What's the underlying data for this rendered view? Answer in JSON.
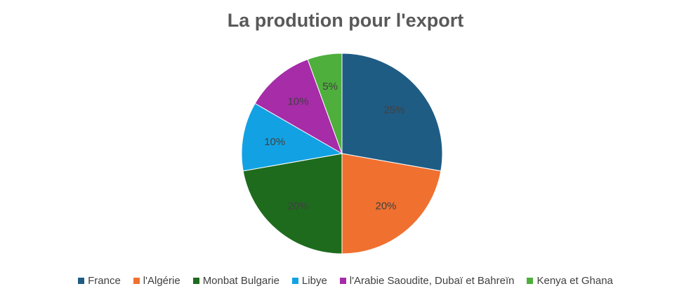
{
  "chart_data": {
    "type": "pie",
    "title": "La prodution pour l'export",
    "categories": [
      "France",
      "l'Algérie",
      "Monbat Bulgarie",
      "Libye",
      "l'Arabie Saoudite, Dubaï et Bahreïn",
      "Kenya et Ghana"
    ],
    "values": [
      25,
      20,
      20,
      10,
      10,
      5
    ],
    "data_labels": [
      "25%",
      "20%",
      "20%",
      "10%",
      "10%",
      "5%"
    ],
    "colors": [
      "#1F5C84",
      "#F07030",
      "#1E6B1E",
      "#12A2E3",
      "#A62CA8",
      "#4EAF3C"
    ],
    "legend_position": "bottom"
  }
}
